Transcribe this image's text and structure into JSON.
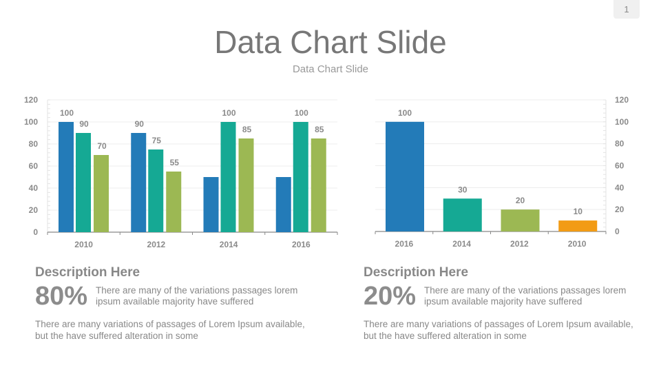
{
  "page_number": "1",
  "title": "Data Chart Slide",
  "subtitle": "Data Chart Slide",
  "chart_data": [
    {
      "type": "bar",
      "categories": [
        "2010",
        "2012",
        "2014",
        "2016"
      ],
      "series": [
        {
          "values": [
            100,
            90,
            50,
            50
          ],
          "labels": [
            "100",
            "90",
            null,
            null
          ],
          "color": "#237bb8"
        },
        {
          "values": [
            90,
            75,
            100,
            100
          ],
          "labels": [
            "90",
            "75",
            "100",
            "100"
          ],
          "color": "#15a994"
        },
        {
          "values": [
            70,
            55,
            85,
            85
          ],
          "labels": [
            "70",
            "55",
            "85",
            "85"
          ],
          "color": "#9cb853"
        }
      ],
      "ylim": [
        0,
        120
      ],
      "yticks": [
        "0",
        "20",
        "40",
        "60",
        "80",
        "100",
        "120"
      ],
      "yaxis_side": "left",
      "grid": true
    },
    {
      "type": "bar",
      "categories": [
        "2016",
        "2014",
        "2012",
        "2010"
      ],
      "values": [
        100,
        30,
        20,
        10
      ],
      "labels": [
        "100",
        "30",
        "20",
        "10"
      ],
      "colors": [
        "#237bb8",
        "#15a994",
        "#9cb853",
        "#f29b15"
      ],
      "ylim": [
        0,
        120
      ],
      "yticks": [
        "0",
        "20",
        "40",
        "60",
        "80",
        "100",
        "120"
      ],
      "yaxis_side": "right",
      "grid": true
    }
  ],
  "descriptions": [
    {
      "heading": "Description Here",
      "percent": "80%",
      "short_text": "There are many of the variations passages lorem ipsum available majority have suffered",
      "long_text": "There are many variations of passages  of Lorem Ipsum available, but the have suffered alteration in some"
    },
    {
      "heading": "Description Here",
      "percent": "20%",
      "short_text": "There are many of the variations passages lorem ipsum available majority have suffered",
      "long_text": "There are many variations of passages  of Lorem Ipsum available, but the have suffered alteration in some"
    }
  ]
}
